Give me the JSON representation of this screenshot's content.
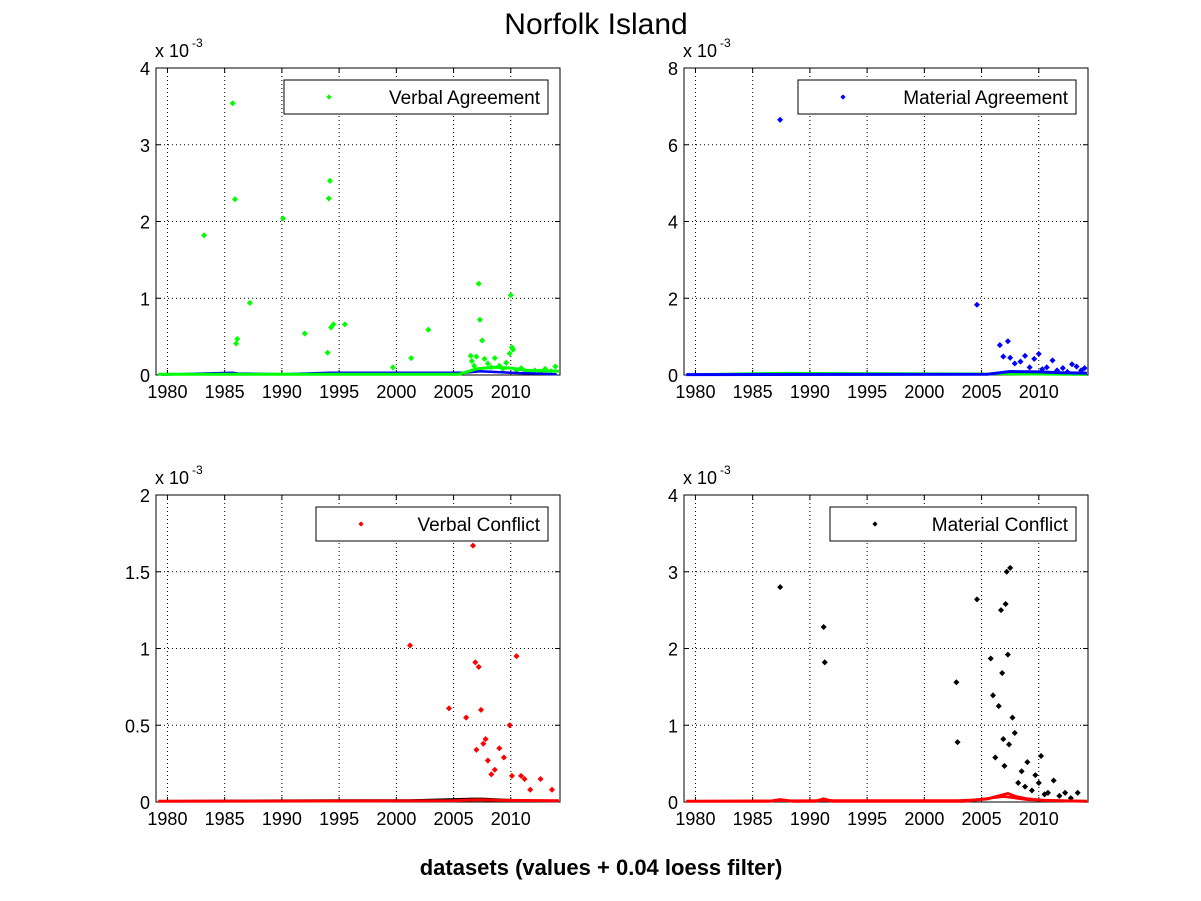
{
  "figure": {
    "title": "Norfolk Island",
    "xlabel": "datasets (values + 0.04 loess filter)"
  },
  "chart_data": [
    {
      "type": "scatter",
      "legend": "Verbal Agreement",
      "legend_position": "top-right",
      "grid": true,
      "xlim": [
        1979,
        2014.3
      ],
      "ylim": [
        0,
        0.004
      ],
      "x_ticks": [
        1980,
        1985,
        1990,
        1995,
        2000,
        2005,
        2010
      ],
      "y_ticks": [
        0,
        1,
        2,
        3,
        4
      ],
      "y_multiplier": "x 10",
      "y_multiplier_exp": "-3",
      "colors": {
        "points": "#00ff00",
        "baseline": "#0000ff",
        "smooth": "#00ff00"
      },
      "points_x": [
        1983.2,
        1985.7,
        1985.9,
        1986.0,
        1986.1,
        1987.2,
        1990.1,
        1992.0,
        1994.1,
        1994.2,
        1994.3,
        1994.5,
        1994.0,
        1995.5,
        1999.7,
        2001.3,
        2002.8,
        2006.5,
        2006.6,
        2006.8,
        2007.0,
        2007.2,
        2007.3,
        2007.5,
        2007.7,
        2008.0,
        2008.3,
        2008.6,
        2009.0,
        2009.3,
        2009.6,
        2009.9,
        2010.0,
        2010.1,
        2010.2,
        2010.5,
        2010.9,
        2011.3,
        2011.7,
        2012.1,
        2012.6,
        2013.0,
        2013.5,
        2013.9
      ],
      "points_y": [
        0.00182,
        0.00354,
        0.00229,
        0.00041,
        0.00047,
        0.00094,
        0.00204,
        0.00054,
        0.0023,
        0.00253,
        0.00062,
        0.00066,
        0.00029,
        0.00066,
        0.0001,
        0.00022,
        0.00059,
        0.00025,
        0.00018,
        0.00012,
        0.00024,
        0.00119,
        0.00072,
        0.00045,
        0.00021,
        0.00015,
        0.0001,
        0.00022,
        0.00012,
        8e-05,
        0.00016,
        0.00028,
        0.00104,
        0.00036,
        0.00033,
        6e-05,
        9e-05,
        5e-05,
        4e-05,
        6e-05,
        4e-05,
        8e-05,
        5e-05,
        0.00011
      ],
      "baseline_x": [
        1979.5,
        1983.2,
        1985.7,
        1986.1,
        1990.1,
        1994.2,
        2006.0,
        2007.3,
        2010.0,
        2014.0
      ],
      "baseline_y": [
        5e-06,
        2e-05,
        3e-05,
        2e-05,
        1e-05,
        3e-05,
        3e-05,
        5e-05,
        3e-05,
        1e-05
      ],
      "smooth_x": [
        1979.2,
        2005.5,
        2007.0,
        2008.5,
        2010.0,
        2011.5,
        2014.2
      ],
      "smooth_y": [
        1e-05,
        1e-05,
        8e-05,
        0.0001,
        9e-05,
        6e-05,
        5e-05
      ]
    },
    {
      "type": "scatter",
      "legend": "Material Agreement",
      "legend_position": "top-right",
      "grid": true,
      "xlim": [
        1979,
        2014.3
      ],
      "ylim": [
        0,
        0.008
      ],
      "x_ticks": [
        1980,
        1985,
        1990,
        1995,
        2000,
        2005,
        2010
      ],
      "y_ticks": [
        0,
        2,
        4,
        6,
        8
      ],
      "y_multiplier": "x 10",
      "y_multiplier_exp": "-3",
      "colors": {
        "points": "#0000ff",
        "baseline": "#00ff00",
        "smooth": "#0000ff"
      },
      "points_x": [
        1987.4,
        2004.6,
        2006.6,
        2006.9,
        2007.3,
        2007.5,
        2007.9,
        2008.4,
        2008.8,
        2009.2,
        2009.6,
        2010.0,
        2010.3,
        2010.7,
        2011.2,
        2011.6,
        2012.1,
        2012.5,
        2012.9,
        2013.3,
        2013.7,
        2014.0
      ],
      "points_y": [
        0.00665,
        0.00183,
        0.00078,
        0.00048,
        0.00088,
        0.00045,
        0.0003,
        0.00035,
        0.0005,
        0.0002,
        0.00042,
        0.00055,
        0.00015,
        0.0002,
        0.00038,
        0.00012,
        0.00018,
        8e-05,
        0.00028,
        0.00022,
        0.00012,
        0.00018
      ],
      "baseline_x": [
        1979.2,
        1987.4,
        2004.6,
        2014.2
      ],
      "baseline_y": [
        1e-05,
        5e-05,
        3e-05,
        1e-05
      ],
      "smooth_x": [
        1979.2,
        2005.5,
        2007.5,
        2010.0,
        2012.0,
        2014.2
      ],
      "smooth_y": [
        1e-05,
        2e-05,
        9e-05,
        8e-05,
        6e-05,
        5e-05
      ]
    },
    {
      "type": "scatter",
      "legend": "Verbal Conflict",
      "legend_position": "top-right",
      "grid": true,
      "xlim": [
        1979,
        2014.3
      ],
      "ylim": [
        0,
        0.002
      ],
      "x_ticks": [
        1980,
        1985,
        1990,
        1995,
        2000,
        2005,
        2010
      ],
      "y_ticks": [
        "0",
        "0.5",
        "1",
        "1.5",
        "2"
      ],
      "y_tick_values": [
        0,
        0.0005,
        0.001,
        0.0015,
        0.002
      ],
      "y_multiplier": "x 10",
      "y_multiplier_exp": "-3",
      "colors": {
        "points": "#ff0000",
        "baseline": "#000000",
        "smooth": "#ff0000"
      },
      "points_x": [
        2001.2,
        2004.6,
        2006.1,
        2006.7,
        2006.9,
        2007.0,
        2007.2,
        2007.4,
        2007.6,
        2007.8,
        2008.0,
        2008.3,
        2008.6,
        2009.0,
        2009.4,
        2009.9,
        2010.1,
        2010.5,
        2010.9,
        2011.2,
        2011.7,
        2012.6,
        2013.6
      ],
      "points_y": [
        0.00102,
        0.00061,
        0.00055,
        0.00167,
        0.00091,
        0.00034,
        0.00088,
        0.0006,
        0.00038,
        0.00041,
        0.00027,
        0.00018,
        0.00021,
        0.00035,
        0.00029,
        0.0005,
        0.00017,
        0.00095,
        0.00017,
        0.00015,
        8e-05,
        0.00015,
        8e-05
      ],
      "baseline_x": [
        1979.2,
        1994.2,
        2001.2,
        2006.7,
        2007.5,
        2010.5,
        2014.2
      ],
      "baseline_y": [
        5e-06,
        1e-05,
        1e-05,
        2e-05,
        2e-05,
        1e-05,
        5e-06
      ],
      "smooth_x": [
        1979.2,
        2005.0,
        2007.0,
        2009.0,
        2011.0,
        2014.2
      ],
      "smooth_y": [
        5e-06,
        8e-06,
        1.5e-05,
        1.2e-05,
        1e-05,
        8e-06
      ]
    },
    {
      "type": "scatter",
      "legend": "Material Conflict",
      "legend_position": "top-right",
      "grid": true,
      "xlim": [
        1979,
        2014.3
      ],
      "ylim": [
        0,
        0.004
      ],
      "x_ticks": [
        1980,
        1985,
        1990,
        1995,
        2000,
        2005,
        2010
      ],
      "y_ticks": [
        0,
        1,
        2,
        3,
        4
      ],
      "y_multiplier": "x 10",
      "y_multiplier_exp": "-3",
      "colors": {
        "points": "#000000",
        "baseline": "#ff0000",
        "smooth": "#ff0000"
      },
      "points_x": [
        1987.4,
        1991.2,
        1991.3,
        2002.8,
        2002.9,
        2004.6,
        2005.8,
        2006.0,
        2006.2,
        2006.5,
        2006.7,
        2006.8,
        2006.9,
        2007.0,
        2007.1,
        2007.2,
        2007.3,
        2007.4,
        2007.5,
        2007.7,
        2007.9,
        2008.2,
        2008.5,
        2008.8,
        2009.0,
        2009.4,
        2009.7,
        2010.0,
        2010.2,
        2010.5,
        2010.8,
        2011.3,
        2011.8,
        2012.3,
        2012.8,
        2013.4
      ],
      "points_y": [
        0.0028,
        0.00228,
        0.00182,
        0.00156,
        0.00078,
        0.00264,
        0.00187,
        0.00139,
        0.00058,
        0.00125,
        0.0025,
        0.00168,
        0.00082,
        0.00047,
        0.00258,
        0.003,
        0.00192,
        0.00075,
        0.00305,
        0.0011,
        0.0009,
        0.00025,
        0.0004,
        0.0002,
        0.00052,
        0.00015,
        0.00035,
        0.00025,
        0.0006,
        0.0001,
        0.00012,
        0.00028,
        8e-05,
        0.00012,
        5e-05,
        0.00012
      ],
      "baseline_x": [
        1979.2,
        1991.2,
        2002.9,
        2004.6,
        2006.9,
        2007.5,
        2009.0,
        2014.2
      ],
      "baseline_y": [
        1e-05,
        2e-05,
        2e-05,
        3e-05,
        7e-05,
        6e-05,
        3e-05,
        1e-05
      ],
      "smooth_x": [
        1979.2,
        1986.5,
        1987.4,
        1988.5,
        1990.5,
        1991.2,
        1992.0,
        2003.5,
        2004.6,
        2005.5,
        2006.5,
        2007.3,
        2008.0,
        2009.0,
        2010.5,
        2014.2
      ],
      "smooth_y": [
        1e-05,
        1e-05,
        3e-05,
        1e-05,
        1e-05,
        4e-05,
        1e-05,
        1e-05,
        3e-05,
        4e-05,
        8e-05,
        0.00011,
        7e-05,
        4e-05,
        2e-05,
        1e-05
      ]
    }
  ]
}
